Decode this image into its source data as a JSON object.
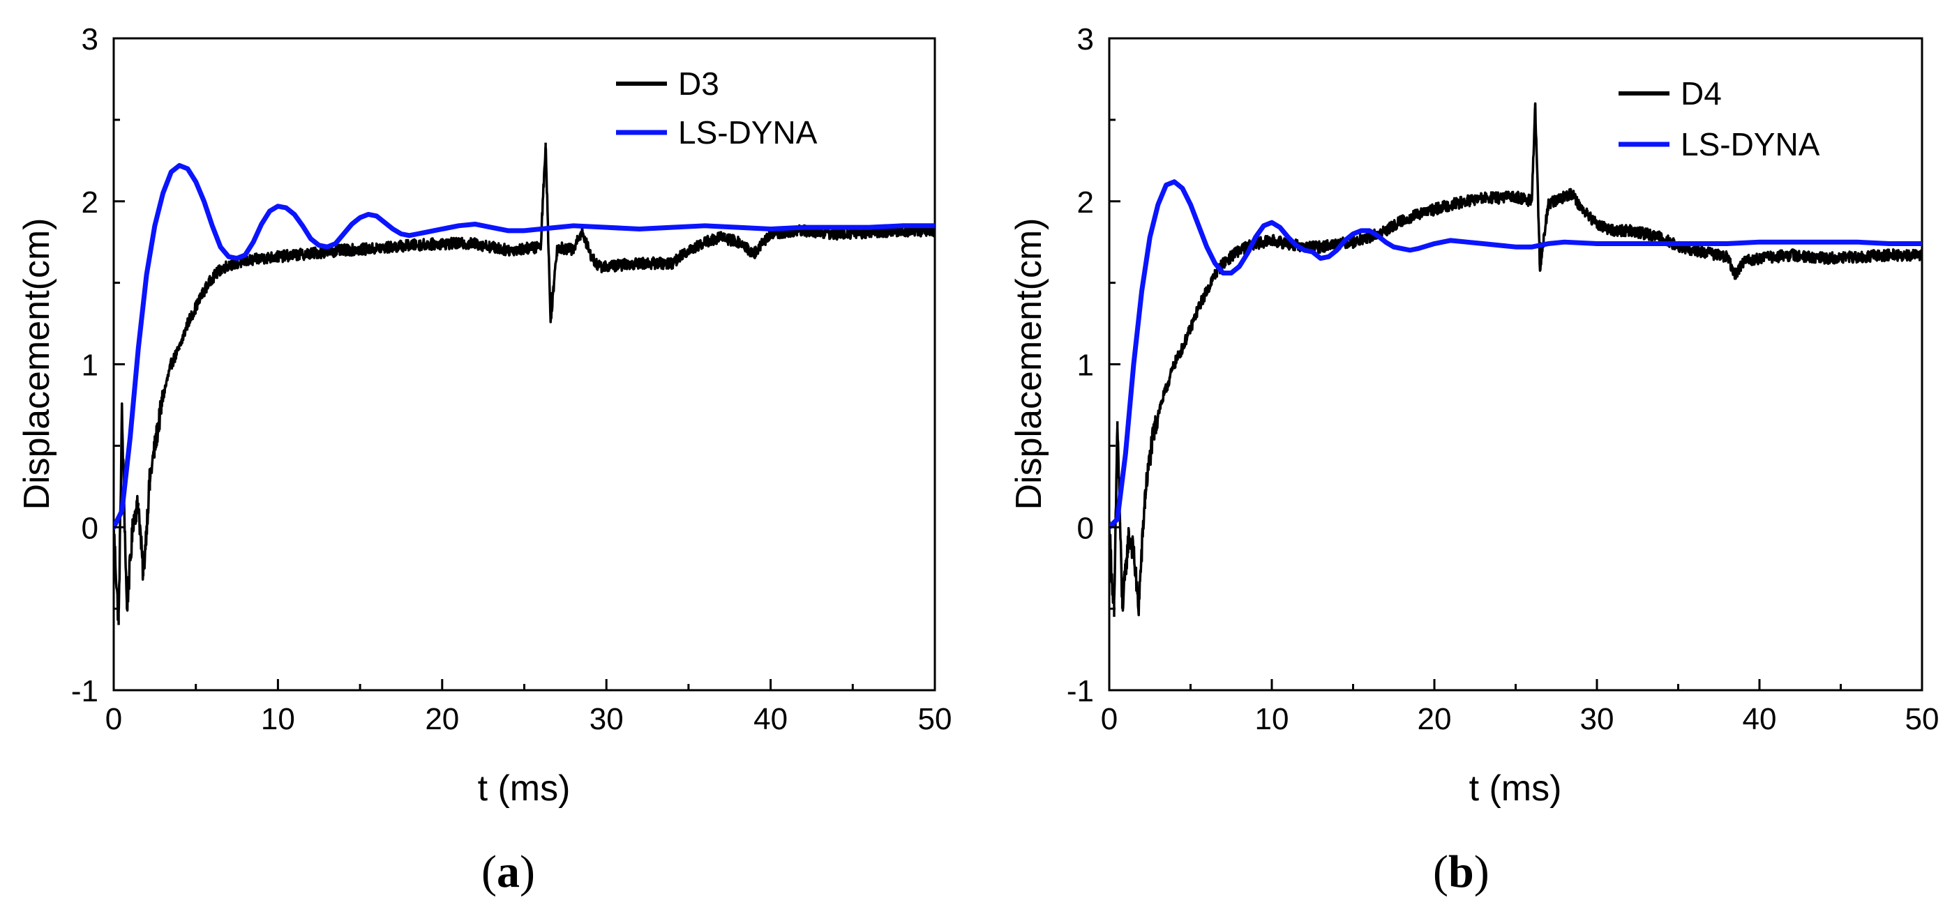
{
  "chart_data": [
    {
      "type": "line",
      "panel_label": "a",
      "xlabel": "t (ms)",
      "ylabel": "Displacement(cm)",
      "xlim": [
        0,
        50
      ],
      "ylim": [
        -1,
        3
      ],
      "xticks": [
        0,
        10,
        20,
        30,
        40,
        50
      ],
      "yticks": [
        -1,
        0,
        1,
        2,
        3
      ],
      "legend_position": "top-right",
      "series": [
        {
          "name": "D3",
          "color": "#000000",
          "x": [
            0,
            0.3,
            0.5,
            0.8,
            1.2,
            1.5,
            1.8,
            2.2,
            2.6,
            3,
            3.5,
            4,
            4.5,
            5,
            5.5,
            6,
            6.5,
            7,
            7.5,
            8,
            9,
            10,
            12,
            14,
            16,
            18,
            20,
            22,
            24,
            26,
            26.3,
            26.6,
            27,
            28,
            28.5,
            29,
            29.5,
            30,
            32,
            34,
            35,
            36,
            37,
            38,
            39,
            40,
            42,
            44,
            46,
            48,
            50
          ],
          "y": [
            0,
            -0.6,
            0.7,
            -0.5,
            0.05,
            0.15,
            -0.3,
            0.3,
            0.55,
            0.8,
            1.0,
            1.1,
            1.25,
            1.35,
            1.45,
            1.53,
            1.58,
            1.61,
            1.62,
            1.63,
            1.65,
            1.66,
            1.68,
            1.7,
            1.71,
            1.73,
            1.74,
            1.74,
            1.7,
            1.72,
            2.36,
            1.26,
            1.72,
            1.7,
            1.82,
            1.68,
            1.6,
            1.6,
            1.62,
            1.62,
            1.7,
            1.75,
            1.78,
            1.75,
            1.68,
            1.8,
            1.82,
            1.8,
            1.81,
            1.82,
            1.82
          ],
          "noise": 0.035
        },
        {
          "name": "LS-DYNA",
          "color": "#0a14ff",
          "x": [
            0,
            0.5,
            1,
            1.5,
            2,
            2.5,
            3,
            3.5,
            4,
            4.5,
            5,
            5.5,
            6,
            6.5,
            7,
            7.5,
            8,
            8.5,
            9,
            9.5,
            10,
            10.5,
            11,
            11.5,
            12,
            12.5,
            13,
            13.5,
            14,
            14.5,
            15,
            15.5,
            16,
            16.5,
            17,
            17.5,
            18,
            18.5,
            19,
            20,
            21,
            22,
            23,
            24,
            25,
            26,
            27,
            28,
            30,
            32,
            34,
            36,
            38,
            40,
            42,
            44,
            46,
            48,
            50
          ],
          "y": [
            0,
            0.1,
            0.55,
            1.1,
            1.55,
            1.85,
            2.05,
            2.18,
            2.22,
            2.2,
            2.12,
            2.0,
            1.85,
            1.72,
            1.66,
            1.65,
            1.67,
            1.75,
            1.86,
            1.94,
            1.97,
            1.96,
            1.92,
            1.85,
            1.77,
            1.73,
            1.72,
            1.74,
            1.8,
            1.86,
            1.9,
            1.92,
            1.91,
            1.87,
            1.83,
            1.8,
            1.79,
            1.8,
            1.81,
            1.83,
            1.85,
            1.86,
            1.84,
            1.82,
            1.82,
            1.83,
            1.84,
            1.85,
            1.84,
            1.83,
            1.84,
            1.85,
            1.84,
            1.83,
            1.84,
            1.84,
            1.84,
            1.85,
            1.85
          ]
        }
      ]
    },
    {
      "type": "line",
      "panel_label": "b",
      "xlabel": "t (ms)",
      "ylabel": "Displacement(cm)",
      "xlim": [
        0,
        50
      ],
      "ylim": [
        -1,
        3
      ],
      "xticks": [
        0,
        10,
        20,
        30,
        40,
        50
      ],
      "yticks": [
        -1,
        0,
        1,
        2,
        3
      ],
      "legend_position": "top-right",
      "series": [
        {
          "name": "D4",
          "color": "#000000",
          "x": [
            0,
            0.3,
            0.5,
            0.8,
            1.2,
            1.5,
            1.8,
            2.2,
            2.6,
            3,
            3.5,
            4,
            4.5,
            5,
            5.5,
            6,
            6.5,
            7,
            8,
            9,
            10,
            11,
            12,
            13,
            14,
            15,
            16,
            17,
            18,
            19,
            20,
            21,
            22,
            23,
            24,
            25,
            26,
            26.2,
            26.5,
            27,
            28,
            28.5,
            29,
            30,
            31,
            32,
            33,
            34,
            35,
            36,
            37,
            38,
            38.5,
            39,
            40,
            42,
            44,
            46,
            48,
            50
          ],
          "y": [
            0,
            -0.55,
            0.65,
            -0.5,
            -0.05,
            -0.15,
            -0.5,
            0.2,
            0.5,
            0.7,
            0.85,
            1.0,
            1.1,
            1.22,
            1.35,
            1.45,
            1.55,
            1.62,
            1.7,
            1.74,
            1.76,
            1.74,
            1.72,
            1.72,
            1.74,
            1.75,
            1.78,
            1.82,
            1.88,
            1.92,
            1.95,
            1.98,
            2.0,
            2.02,
            2.02,
            2.03,
            2.0,
            2.6,
            1.58,
            1.98,
            2.03,
            2.05,
            1.96,
            1.86,
            1.82,
            1.82,
            1.8,
            1.78,
            1.72,
            1.7,
            1.68,
            1.66,
            1.55,
            1.63,
            1.65,
            1.67,
            1.65,
            1.66,
            1.67,
            1.67
          ],
          "noise": 0.035
        },
        {
          "name": "LS-DYNA",
          "color": "#0a14ff",
          "x": [
            0,
            0.5,
            1,
            1.5,
            2,
            2.5,
            3,
            3.5,
            4,
            4.5,
            5,
            5.5,
            6,
            6.5,
            7,
            7.5,
            8,
            8.5,
            9,
            9.5,
            10,
            10.5,
            11,
            11.5,
            12,
            12.5,
            13,
            13.5,
            14,
            14.5,
            15,
            15.5,
            16,
            16.5,
            17,
            17.5,
            18,
            18.5,
            19,
            20,
            21,
            22,
            23,
            24,
            25,
            26,
            27,
            28,
            30,
            32,
            34,
            36,
            38,
            40,
            42,
            44,
            46,
            48,
            50
          ],
          "y": [
            0,
            0.05,
            0.45,
            1.0,
            1.45,
            1.78,
            1.98,
            2.1,
            2.12,
            2.08,
            1.98,
            1.85,
            1.72,
            1.62,
            1.56,
            1.56,
            1.6,
            1.68,
            1.78,
            1.85,
            1.87,
            1.84,
            1.78,
            1.73,
            1.7,
            1.69,
            1.65,
            1.66,
            1.7,
            1.76,
            1.8,
            1.82,
            1.82,
            1.79,
            1.75,
            1.72,
            1.71,
            1.7,
            1.71,
            1.74,
            1.76,
            1.75,
            1.74,
            1.73,
            1.72,
            1.72,
            1.74,
            1.75,
            1.74,
            1.74,
            1.74,
            1.74,
            1.74,
            1.75,
            1.75,
            1.75,
            1.75,
            1.74,
            1.74
          ]
        }
      ]
    }
  ]
}
